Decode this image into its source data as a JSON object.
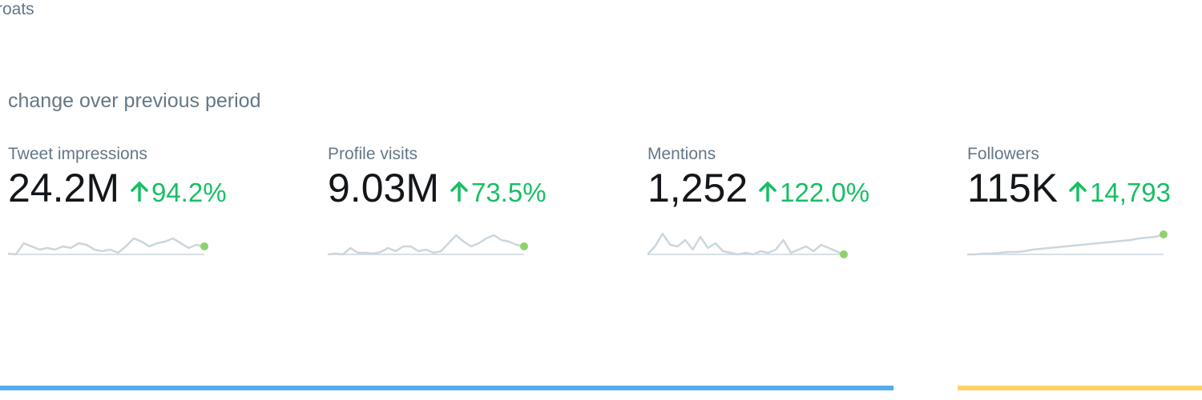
{
  "header": {
    "partial_title": "roats",
    "subtitle": "change over previous period"
  },
  "metrics": [
    {
      "label": "Tweet impressions",
      "value": "24.2M",
      "change": "94.2%",
      "sparkline": [
        1,
        0,
        14,
        10,
        6,
        8,
        6,
        10,
        8,
        14,
        12,
        6,
        4,
        6,
        2,
        10,
        20,
        16,
        10,
        14,
        16,
        20,
        14,
        8,
        12,
        10
      ]
    },
    {
      "label": "Profile visits",
      "value": "9.03M",
      "change": "73.5%",
      "sparkline": [
        0,
        1,
        0,
        8,
        2,
        2,
        1,
        3,
        8,
        4,
        10,
        10,
        4,
        6,
        2,
        4,
        14,
        24,
        16,
        10,
        14,
        20,
        24,
        18,
        16,
        12,
        10
      ]
    },
    {
      "label": "Mentions",
      "value": "1,252",
      "change": "122.0%",
      "sparkline": [
        0,
        10,
        26,
        12,
        10,
        18,
        6,
        22,
        8,
        14,
        4,
        2,
        0,
        2,
        0,
        4,
        2,
        6,
        18,
        2,
        6,
        10,
        4,
        12,
        8,
        4,
        0
      ]
    },
    {
      "label": "Followers",
      "value": "115K",
      "change": "14,793",
      "sparkline": [
        0,
        0,
        1,
        1,
        2,
        3,
        3,
        4,
        6,
        7,
        8,
        9,
        10,
        11,
        12,
        13,
        14,
        15,
        16,
        17,
        18,
        20,
        21,
        22,
        25
      ]
    }
  ]
}
